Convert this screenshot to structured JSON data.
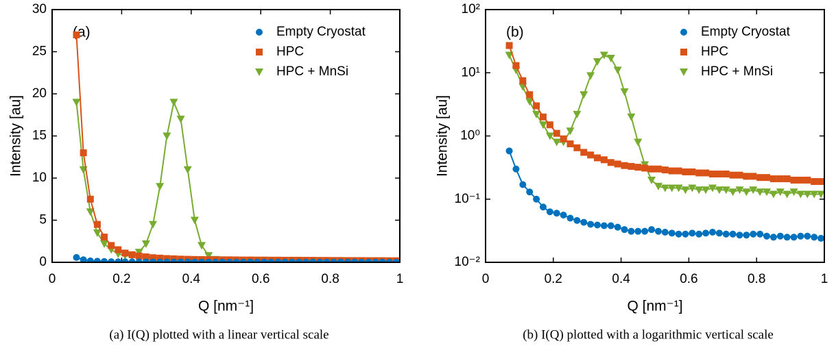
{
  "chart_data": [
    {
      "type": "line",
      "annotation": "(a)",
      "caption": "(a) I(Q) plotted with a linear vertical scale",
      "xlabel": "Q [nm⁻¹]",
      "ylabel": "Intensity [au]",
      "yscale": "linear",
      "legend": "upper right",
      "xlim": [
        0,
        1
      ],
      "xticks": [
        0,
        0.2,
        0.4,
        0.6,
        0.8,
        1
      ],
      "ylim": [
        0,
        30
      ],
      "yticks": [
        0,
        5,
        10,
        15,
        20,
        25,
        30
      ],
      "x": [
        0.07,
        0.09,
        0.11,
        0.13,
        0.15,
        0.17,
        0.19,
        0.21,
        0.23,
        0.25,
        0.27,
        0.29,
        0.31,
        0.33,
        0.35,
        0.37,
        0.39,
        0.41,
        0.43,
        0.45,
        0.47,
        0.49,
        0.51,
        0.53,
        0.55,
        0.57,
        0.59,
        0.61,
        0.63,
        0.65,
        0.67,
        0.69,
        0.71,
        0.73,
        0.75,
        0.77,
        0.79,
        0.81,
        0.83,
        0.85,
        0.87,
        0.89,
        0.91,
        0.93,
        0.95,
        0.97,
        0.99
      ],
      "series": [
        {
          "name": "Empty Cryostat",
          "color": "#0072bd",
          "marker": "circle",
          "values": [
            0.58,
            0.3,
            0.17,
            0.13,
            0.1,
            0.075,
            0.063,
            0.06,
            0.056,
            0.05,
            0.046,
            0.043,
            0.04,
            0.039,
            0.038,
            0.038,
            0.036,
            0.033,
            0.031,
            0.031,
            0.031,
            0.033,
            0.031,
            0.03,
            0.029,
            0.028,
            0.028,
            0.029,
            0.028,
            0.029,
            0.03,
            0.029,
            0.028,
            0.028,
            0.027,
            0.027,
            0.028,
            0.028,
            0.026,
            0.025,
            0.026,
            0.025,
            0.025,
            0.026,
            0.026,
            0.025,
            0.024
          ]
        },
        {
          "name": "HPC",
          "color": "#d95319",
          "marker": "square",
          "values": [
            27,
            13,
            7.5,
            4.5,
            3.0,
            2.0,
            1.5,
            1.1,
            0.9,
            0.75,
            0.65,
            0.55,
            0.5,
            0.45,
            0.42,
            0.38,
            0.36,
            0.34,
            0.33,
            0.32,
            0.31,
            0.3,
            0.3,
            0.29,
            0.28,
            0.28,
            0.27,
            0.27,
            0.26,
            0.26,
            0.25,
            0.25,
            0.25,
            0.24,
            0.24,
            0.23,
            0.23,
            0.22,
            0.22,
            0.21,
            0.21,
            0.21,
            0.2,
            0.2,
            0.2,
            0.19,
            0.19
          ]
        },
        {
          "name": "HPC + MnSi",
          "color": "#77ac30",
          "marker": "triangle-down",
          "values": [
            19,
            11,
            6.0,
            3.5,
            2.2,
            1.5,
            1.0,
            0.8,
            0.8,
            1.2,
            2.2,
            4.5,
            9.0,
            15,
            19,
            17,
            11,
            5.0,
            2.0,
            0.8,
            0.35,
            0.2,
            0.16,
            0.15,
            0.15,
            0.15,
            0.14,
            0.15,
            0.14,
            0.14,
            0.15,
            0.14,
            0.14,
            0.13,
            0.14,
            0.13,
            0.14,
            0.13,
            0.13,
            0.12,
            0.13,
            0.12,
            0.13,
            0.12,
            0.12,
            0.12,
            0.12
          ]
        }
      ]
    },
    {
      "type": "line",
      "annotation": "(b)",
      "caption": "(b) I(Q) plotted with a logarithmic vertical scale",
      "xlabel": "Q [nm⁻¹]",
      "ylabel": "Intensity [au]",
      "yscale": "log",
      "legend": "upper right",
      "xlim": [
        0,
        1
      ],
      "xticks": [
        0,
        0.2,
        0.4,
        0.6,
        0.8,
        1
      ],
      "ylim": [
        0.01,
        100
      ],
      "yticks": [
        {
          "value": 0.01,
          "label": "10⁻²"
        },
        {
          "value": 0.1,
          "label": "10⁻¹"
        },
        {
          "value": 1,
          "label": "10⁰"
        },
        {
          "value": 10,
          "label": "10¹"
        },
        {
          "value": 100,
          "label": "10²"
        }
      ],
      "x": [
        0.07,
        0.09,
        0.11,
        0.13,
        0.15,
        0.17,
        0.19,
        0.21,
        0.23,
        0.25,
        0.27,
        0.29,
        0.31,
        0.33,
        0.35,
        0.37,
        0.39,
        0.41,
        0.43,
        0.45,
        0.47,
        0.49,
        0.51,
        0.53,
        0.55,
        0.57,
        0.59,
        0.61,
        0.63,
        0.65,
        0.67,
        0.69,
        0.71,
        0.73,
        0.75,
        0.77,
        0.79,
        0.81,
        0.83,
        0.85,
        0.87,
        0.89,
        0.91,
        0.93,
        0.95,
        0.97,
        0.99
      ],
      "series": [
        {
          "name": "Empty Cryostat",
          "color": "#0072bd",
          "marker": "circle",
          "values": [
            0.58,
            0.3,
            0.17,
            0.13,
            0.1,
            0.075,
            0.063,
            0.06,
            0.056,
            0.05,
            0.046,
            0.043,
            0.04,
            0.039,
            0.038,
            0.038,
            0.036,
            0.033,
            0.031,
            0.031,
            0.031,
            0.033,
            0.031,
            0.03,
            0.029,
            0.028,
            0.028,
            0.029,
            0.028,
            0.029,
            0.03,
            0.029,
            0.028,
            0.028,
            0.027,
            0.027,
            0.028,
            0.028,
            0.026,
            0.025,
            0.026,
            0.025,
            0.025,
            0.026,
            0.026,
            0.025,
            0.024
          ]
        },
        {
          "name": "HPC",
          "color": "#d95319",
          "marker": "square",
          "values": [
            27,
            13,
            7.5,
            4.5,
            3.0,
            2.0,
            1.5,
            1.1,
            0.9,
            0.75,
            0.65,
            0.55,
            0.5,
            0.45,
            0.42,
            0.38,
            0.36,
            0.34,
            0.33,
            0.32,
            0.31,
            0.3,
            0.3,
            0.29,
            0.28,
            0.28,
            0.27,
            0.27,
            0.26,
            0.26,
            0.25,
            0.25,
            0.25,
            0.24,
            0.24,
            0.23,
            0.23,
            0.22,
            0.22,
            0.21,
            0.21,
            0.21,
            0.2,
            0.2,
            0.2,
            0.19,
            0.19
          ]
        },
        {
          "name": "HPC + MnSi",
          "color": "#77ac30",
          "marker": "triangle-down",
          "values": [
            19,
            11,
            6.0,
            3.5,
            2.2,
            1.5,
            1.0,
            0.8,
            0.8,
            1.2,
            2.2,
            4.5,
            9.0,
            15,
            19,
            17,
            11,
            5.0,
            2.0,
            0.8,
            0.35,
            0.2,
            0.16,
            0.15,
            0.15,
            0.15,
            0.14,
            0.15,
            0.14,
            0.14,
            0.15,
            0.14,
            0.14,
            0.13,
            0.14,
            0.13,
            0.14,
            0.13,
            0.13,
            0.12,
            0.13,
            0.12,
            0.13,
            0.12,
            0.12,
            0.12,
            0.12
          ]
        }
      ]
    }
  ]
}
